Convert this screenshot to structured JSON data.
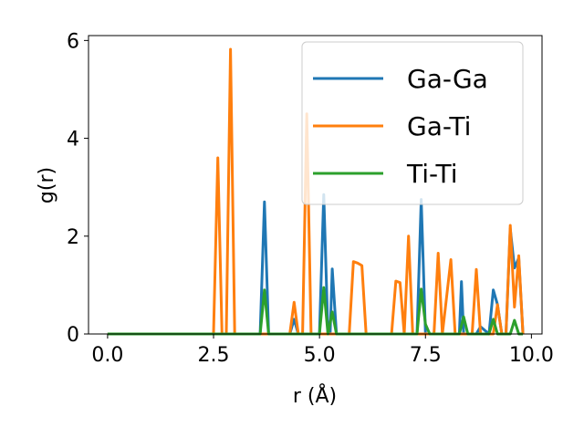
{
  "chart_data": {
    "type": "line",
    "xlabel": "r (Å)",
    "ylabel": "g(r)",
    "xlim": [
      -0.45,
      10.25
    ],
    "ylim": [
      0,
      6.1
    ],
    "xticks": [
      0.0,
      2.5,
      5.0,
      7.5,
      10.0
    ],
    "xtick_labels": [
      "0.0",
      "2.5",
      "5.0",
      "7.5",
      "10.0"
    ],
    "yticks": [
      0,
      2,
      4,
      6
    ],
    "ytick_labels": [
      "0",
      "2",
      "4",
      "6"
    ],
    "grid": false,
    "legend_position": "top-right",
    "series": [
      {
        "name": "Ga-Ga",
        "color": "#1f77b4",
        "points": [
          [
            0.0,
            0
          ],
          [
            3.6,
            0
          ],
          [
            3.7,
            2.7
          ],
          [
            3.8,
            0
          ],
          [
            4.3,
            0
          ],
          [
            4.4,
            0.3
          ],
          [
            4.5,
            0
          ],
          [
            5.0,
            0
          ],
          [
            5.1,
            2.85
          ],
          [
            5.2,
            0
          ],
          [
            5.25,
            0
          ],
          [
            5.3,
            1.33
          ],
          [
            5.4,
            0
          ],
          [
            7.3,
            0
          ],
          [
            7.4,
            2.75
          ],
          [
            7.5,
            0
          ],
          [
            8.3,
            0
          ],
          [
            8.35,
            1.07
          ],
          [
            8.4,
            0
          ],
          [
            8.7,
            0
          ],
          [
            8.8,
            0.15
          ],
          [
            9.0,
            0
          ],
          [
            9.1,
            0.9
          ],
          [
            9.2,
            0.6
          ],
          [
            9.3,
            0
          ],
          [
            9.4,
            0
          ],
          [
            9.5,
            2.15
          ],
          [
            9.6,
            1.35
          ],
          [
            9.7,
            1.55
          ],
          [
            9.8,
            0
          ]
        ]
      },
      {
        "name": "Ga-Ti",
        "color": "#ff7f0e",
        "points": [
          [
            0.0,
            0
          ],
          [
            2.5,
            0
          ],
          [
            2.6,
            3.6
          ],
          [
            2.7,
            0
          ],
          [
            2.8,
            0
          ],
          [
            2.9,
            5.82
          ],
          [
            3.0,
            0
          ],
          [
            4.3,
            0
          ],
          [
            4.4,
            0.65
          ],
          [
            4.5,
            0
          ],
          [
            4.6,
            0
          ],
          [
            4.7,
            4.5
          ],
          [
            4.8,
            0
          ],
          [
            5.7,
            0
          ],
          [
            5.8,
            1.48
          ],
          [
            5.9,
            1.45
          ],
          [
            6.0,
            1.4
          ],
          [
            6.1,
            0
          ],
          [
            6.7,
            0
          ],
          [
            6.8,
            1.08
          ],
          [
            6.9,
            1.05
          ],
          [
            7.0,
            0
          ],
          [
            7.1,
            2.0
          ],
          [
            7.2,
            0
          ],
          [
            7.7,
            0
          ],
          [
            7.8,
            1.65
          ],
          [
            7.9,
            0
          ],
          [
            8.1,
            1.52
          ],
          [
            8.2,
            0
          ],
          [
            8.6,
            0
          ],
          [
            8.7,
            1.32
          ],
          [
            8.8,
            0
          ],
          [
            9.1,
            0
          ],
          [
            9.2,
            0.6
          ],
          [
            9.3,
            0
          ],
          [
            9.4,
            0
          ],
          [
            9.5,
            2.22
          ],
          [
            9.6,
            0.55
          ],
          [
            9.7,
            1.6
          ],
          [
            9.8,
            0
          ]
        ]
      },
      {
        "name": "Ti-Ti",
        "color": "#2ca02c",
        "points": [
          [
            0.0,
            0
          ],
          [
            3.6,
            0
          ],
          [
            3.7,
            0.9
          ],
          [
            3.8,
            0
          ],
          [
            5.0,
            0
          ],
          [
            5.1,
            0.95
          ],
          [
            5.2,
            0
          ],
          [
            5.3,
            0.45
          ],
          [
            5.4,
            0
          ],
          [
            7.3,
            0
          ],
          [
            7.4,
            0.92
          ],
          [
            7.5,
            0.2
          ],
          [
            7.6,
            0
          ],
          [
            8.3,
            0
          ],
          [
            8.4,
            0.35
          ],
          [
            8.5,
            0
          ],
          [
            9.0,
            0
          ],
          [
            9.1,
            0.3
          ],
          [
            9.2,
            0
          ],
          [
            9.5,
            0
          ],
          [
            9.6,
            0.28
          ],
          [
            9.7,
            0
          ],
          [
            9.8,
            0
          ]
        ]
      }
    ]
  }
}
